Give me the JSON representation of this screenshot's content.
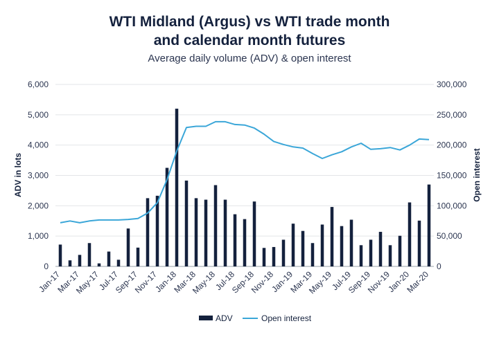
{
  "chart_data": {
    "type": "bar+line",
    "title_line1": "WTI Midland (Argus) vs WTI trade month",
    "title_line2": "and calendar month futures",
    "subtitle": "Average daily volume (ADV) & open interest",
    "ylabel": "ADV in lots",
    "ylabel_right": "Open interest",
    "ylim": [
      0,
      6000
    ],
    "ylim_right": [
      0,
      300000
    ],
    "yticks": [
      0,
      1000,
      2000,
      3000,
      4000,
      5000,
      6000
    ],
    "yticks_right": [
      0,
      50000,
      100000,
      150000,
      200000,
      250000,
      300000
    ],
    "ytick_labels": [
      "0",
      "1,000",
      "2,000",
      "3,000",
      "4,000",
      "5,000",
      "6,000"
    ],
    "ytick_labels_right": [
      "0",
      "50,000",
      "100,000",
      "150,000",
      "200,000",
      "250,000",
      "300,000"
    ],
    "categories": [
      "Jan-17",
      "Feb-17",
      "Mar-17",
      "Apr-17",
      "May-17",
      "Jun-17",
      "Jul-17",
      "Aug-17",
      "Sep-17",
      "Oct-17",
      "Nov-17",
      "Dec-17",
      "Jan-18",
      "Feb-18",
      "Mar-18",
      "Apr-18",
      "May-18",
      "Jun-18",
      "Jul-18",
      "Aug-18",
      "Sep-18",
      "Oct-18",
      "Nov-18",
      "Dec-18",
      "Jan-19",
      "Feb-19",
      "Mar-19",
      "Apr-19",
      "May-19",
      "Jun-19",
      "Jul-19",
      "Aug-19",
      "Sep-19",
      "Oct-19",
      "Nov-19",
      "Dec-19",
      "Jan-20",
      "Feb-20",
      "Mar-20"
    ],
    "tick_labels": [
      "Jan-17",
      "Mar-17",
      "May-17",
      "Jul-17",
      "Sep-17",
      "Nov-17",
      "Jan-18",
      "Mar-18",
      "May-18",
      "Jul-18",
      "Sep-18",
      "Nov-18",
      "Jan-19",
      "Mar-19",
      "May-19",
      "Jul-19",
      "Sep-19",
      "Nov-19",
      "Jan-20",
      "Mar-20"
    ],
    "series": [
      {
        "name": "ADV",
        "type": "bar",
        "axis": "left",
        "color": "#14213d",
        "values": [
          720,
          200,
          380,
          770,
          100,
          490,
          220,
          1250,
          620,
          2250,
          2330,
          3250,
          5200,
          2830,
          2250,
          2200,
          2680,
          2200,
          1720,
          1560,
          2140,
          610,
          640,
          880,
          1410,
          1170,
          770,
          1380,
          1960,
          1330,
          1540,
          700,
          880,
          1140,
          700,
          1010,
          2110,
          1510,
          2700
        ]
      },
      {
        "name": "Open interest",
        "type": "line",
        "axis": "right",
        "color": "#3aa6d8",
        "values": [
          72000,
          75000,
          72000,
          75000,
          76500,
          76500,
          76500,
          77500,
          79000,
          88000,
          105000,
          143000,
          190000,
          229000,
          231000,
          231000,
          238500,
          238500,
          234000,
          233000,
          228000,
          218000,
          206000,
          201000,
          197000,
          195000,
          186000,
          178000,
          184000,
          189000,
          197000,
          203000,
          193000,
          194000,
          196000,
          192000,
          200000,
          210000,
          209000
        ]
      }
    ],
    "legend": [
      {
        "label": "ADV",
        "color": "#14213d",
        "kind": "bar"
      },
      {
        "label": "Open interest",
        "color": "#3aa6d8",
        "kind": "line"
      }
    ],
    "legend_position": "bottom-center",
    "grid": true
  }
}
